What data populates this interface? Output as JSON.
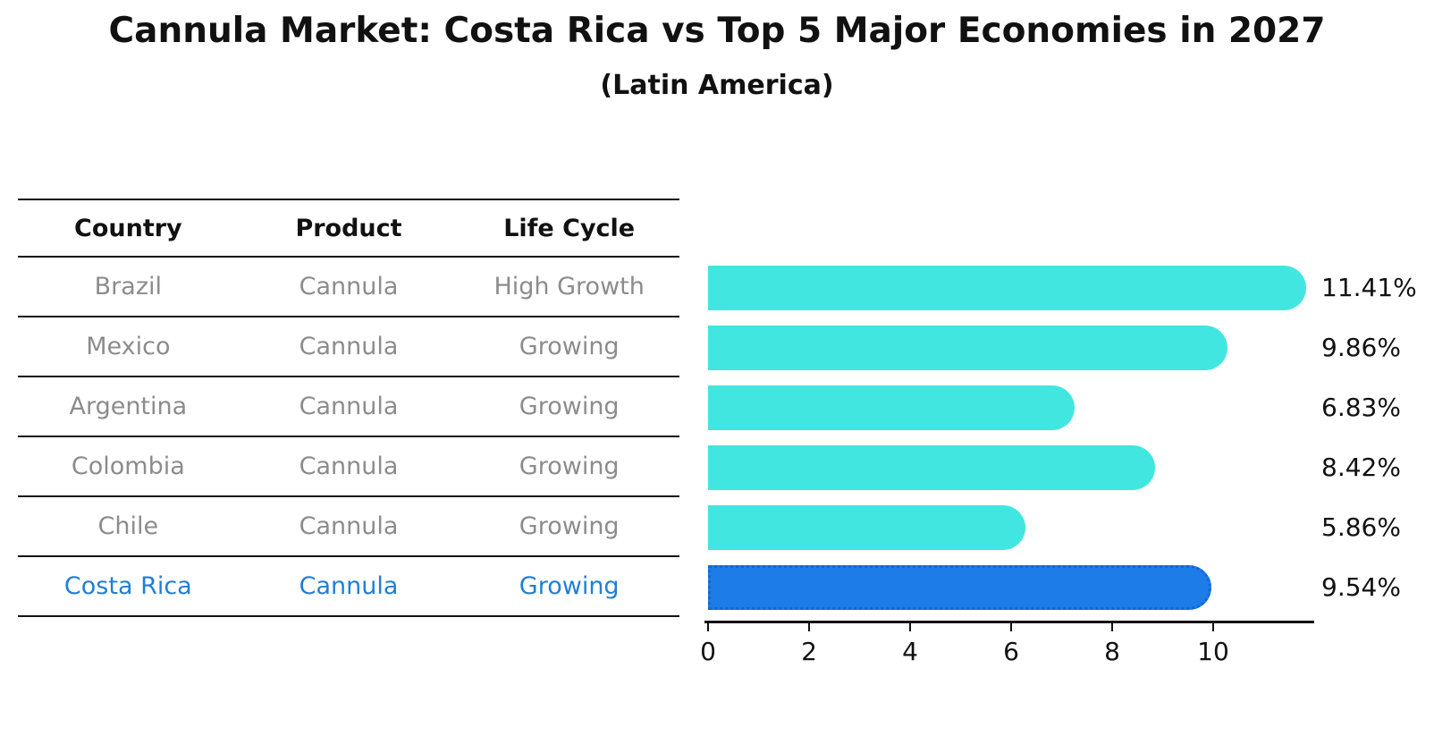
{
  "title": "Cannula Market: Costa Rica vs Top 5 Major Economies in 2027",
  "subtitle": "(Latin America)",
  "table": {
    "headers": [
      "Country",
      "Product",
      "Life Cycle"
    ],
    "rows": [
      {
        "country": "Brazil",
        "product": "Cannula",
        "life_cycle": "High Growth",
        "highlight": false
      },
      {
        "country": "Mexico",
        "product": "Cannula",
        "life_cycle": "Growing",
        "highlight": false
      },
      {
        "country": "Argentina",
        "product": "Cannula",
        "life_cycle": "Growing",
        "highlight": false
      },
      {
        "country": "Colombia",
        "product": "Cannula",
        "life_cycle": "Growing",
        "highlight": false
      },
      {
        "country": "Chile",
        "product": "Cannula",
        "life_cycle": "Growing",
        "highlight": false
      },
      {
        "country": "Costa Rica",
        "product": "Cannula",
        "life_cycle": "Growing",
        "highlight": true
      }
    ]
  },
  "chart_data": {
    "type": "bar",
    "orientation": "horizontal",
    "title": "Cannula Market: Costa Rica vs Top 5 Major Economies in 2027",
    "subtitle": "(Latin America)",
    "categories": [
      "Brazil",
      "Mexico",
      "Argentina",
      "Colombia",
      "Chile",
      "Costa Rica"
    ],
    "values": [
      11.41,
      9.86,
      6.83,
      8.42,
      5.86,
      9.54
    ],
    "value_labels": [
      "11.41%",
      "9.86%",
      "6.83%",
      "8.42%",
      "5.86%",
      "9.54%"
    ],
    "highlight_category": "Costa Rica",
    "xlim": [
      0,
      12
    ],
    "xticks": [
      0,
      2,
      4,
      6,
      8,
      10
    ],
    "grid": false,
    "legend": false,
    "bar_color": "#42e6e0",
    "highlight_bar_color": "#1d7ce8"
  },
  "colors": {
    "bar": "#42e6e0",
    "highlight_bar": "#1d7ce8",
    "highlight_border": "#1565d4",
    "highlight_text": "#1f7fd6",
    "row_text": "#8c8c8c",
    "header_text": "#111111",
    "line": "#111111"
  }
}
